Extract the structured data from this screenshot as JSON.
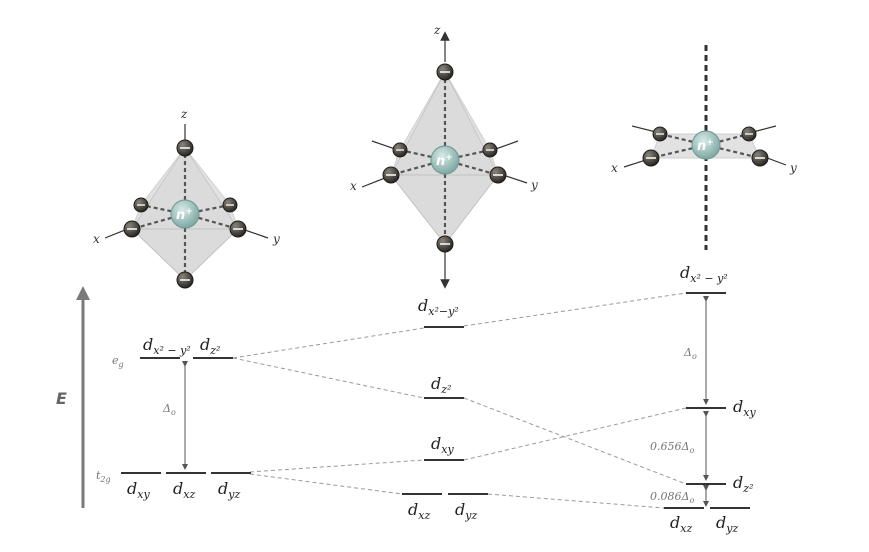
{
  "energy_axis": {
    "label": "E"
  },
  "octahedral": {
    "group_eg": "e",
    "group_eg_sub": "g",
    "group_t2g": "t",
    "group_t2g_sub": "2g",
    "gap_label": "Δ",
    "gap_sub": "o",
    "orbitals": {
      "dx2y2": {
        "main": "d",
        "sub": "x² − y²"
      },
      "dz2": {
        "main": "d",
        "sub": "z²"
      },
      "dxy": {
        "main": "d",
        "sub": "xy"
      },
      "dxz": {
        "main": "d",
        "sub": "xz"
      },
      "dyz": {
        "main": "d",
        "sub": "yz"
      }
    }
  },
  "elongated": {
    "orbitals": {
      "dx2y2": {
        "main": "d",
        "sub": "x²−y²"
      },
      "dz2": {
        "main": "d",
        "sub": "z²"
      },
      "dxy": {
        "main": "d",
        "sub": "xy"
      },
      "dxz": {
        "main": "d",
        "sub": "xz"
      },
      "dyz": {
        "main": "d",
        "sub": "yz"
      }
    }
  },
  "square_planar": {
    "gap_upper": "Δ",
    "gap_upper_sub": "o",
    "gap_middle": "0.656Δ",
    "gap_middle_sub": "o",
    "gap_lower": "0.086Δ",
    "gap_lower_sub": "o",
    "orbitals": {
      "dx2y2": {
        "main": "d",
        "sub": "x² − y²"
      },
      "dxy": {
        "main": "d",
        "sub": "xy"
      },
      "dz2": {
        "main": "d",
        "sub": "z²"
      },
      "dxz": {
        "main": "d",
        "sub": "xz"
      },
      "dyz": {
        "main": "d",
        "sub": "yz"
      }
    }
  },
  "structures": {
    "ion_label": "n",
    "ion_charge": "+",
    "axis_x": "x",
    "axis_y": "y",
    "axis_z": "z"
  }
}
